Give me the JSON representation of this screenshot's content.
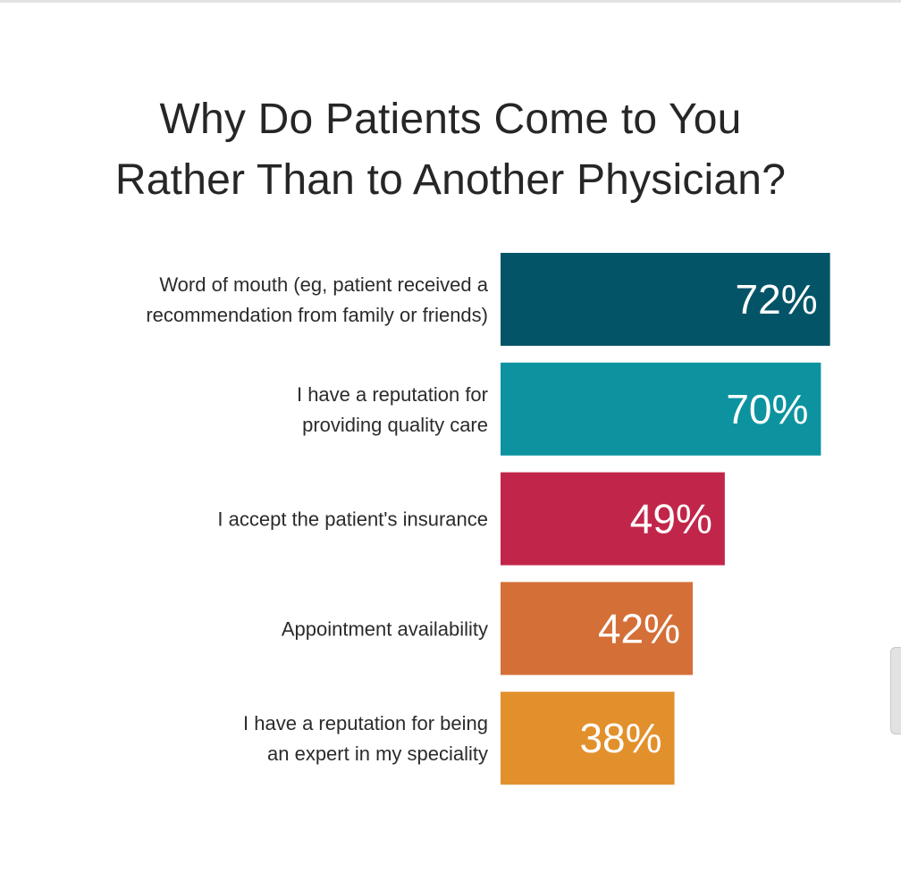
{
  "chart_data": {
    "type": "bar",
    "orientation": "horizontal",
    "title_lines": [
      "Why Do Patients Come to You",
      "Rather Than to Another Physician?"
    ],
    "categories": [
      [
        "Word of mouth (eg, patient received a",
        "recommendation from family or friends)"
      ],
      [
        "I have a reputation for",
        "providing quality care"
      ],
      [
        "I accept the patient's insurance"
      ],
      [
        "Appointment availability"
      ],
      [
        "I have a reputation for being",
        "an expert in my speciality"
      ]
    ],
    "values": [
      72,
      70,
      49,
      42,
      38
    ],
    "value_labels": [
      "72%",
      "70%",
      "49%",
      "42%",
      "38%"
    ],
    "colors": [
      "#045468",
      "#0d93a0",
      "#c1264a",
      "#d46f38",
      "#e2902c"
    ],
    "unit": "%",
    "grid": false,
    "legend": "none"
  }
}
